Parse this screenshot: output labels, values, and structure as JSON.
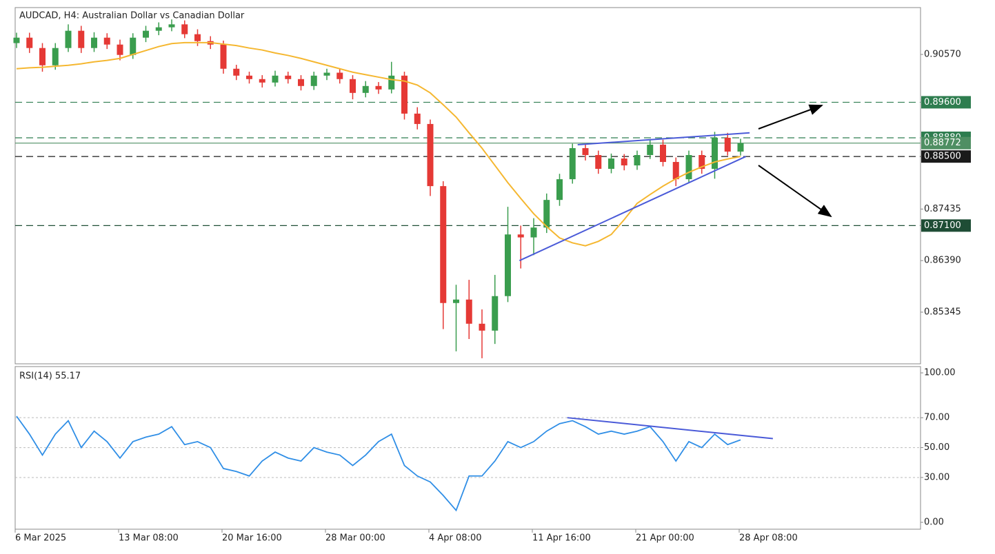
{
  "chart_data": {
    "type": "candlestick",
    "title": "AUDCAD, H4:  Australian Dollar vs Canadian Dollar",
    "categories": [
      "6 Mar 2025",
      null,
      null,
      null,
      null,
      null,
      null,
      null,
      "13 Mar 08:00",
      null,
      null,
      null,
      null,
      null,
      null,
      null,
      "20 Mar 16:00",
      null,
      null,
      null,
      null,
      null,
      null,
      null,
      "28 Mar 00:00",
      null,
      null,
      null,
      null,
      null,
      null,
      null,
      "4 Apr 08:00",
      null,
      null,
      null,
      null,
      null,
      null,
      null,
      "11 Apr 16:00",
      null,
      null,
      null,
      null,
      null,
      null,
      null,
      "21 Apr 00:00",
      null,
      null,
      null,
      null,
      null,
      null,
      null,
      "28 Apr 08:00"
    ],
    "open": [
      0.908,
      0.9091,
      0.907,
      0.9035,
      0.907,
      0.9105,
      0.907,
      0.9091,
      0.9077,
      0.9056,
      0.9091,
      0.9105,
      0.9112,
      0.9118,
      0.9098,
      0.9084,
      0.9077,
      0.9028,
      0.9014,
      0.9007,
      0.9,
      0.9014,
      0.9007,
      0.8993,
      0.9014,
      0.902,
      0.9007,
      0.8979,
      0.8993,
      0.8986,
      0.9014,
      0.8937,
      0.8916,
      0.879,
      0.8553,
      0.856,
      0.8511,
      0.8497,
      0.8567,
      0.8692,
      0.8686,
      0.8706,
      0.8762,
      0.8804,
      0.8867,
      0.8853,
      0.8825,
      0.8846,
      0.8832,
      0.8853,
      0.8874,
      0.8839,
      0.8804,
      0.8853,
      0.8825,
      0.8888,
      0.886
    ],
    "high": [
      0.9101,
      0.9101,
      0.908,
      0.908,
      0.9118,
      0.9115,
      0.9102,
      0.91,
      0.9087,
      0.91,
      0.9115,
      0.9122,
      0.9128,
      0.9126,
      0.9108,
      0.9094,
      0.9085,
      0.9036,
      0.9022,
      0.9015,
      0.9024,
      0.9022,
      0.9015,
      0.9022,
      0.9028,
      0.9028,
      0.9015,
      0.9003,
      0.9001,
      0.9042,
      0.9022,
      0.895,
      0.8925,
      0.88,
      0.859,
      0.86,
      0.854,
      0.861,
      0.8748,
      0.871,
      0.8725,
      0.8775,
      0.8815,
      0.8876,
      0.8875,
      0.8862,
      0.8856,
      0.8855,
      0.8862,
      0.8884,
      0.8884,
      0.8848,
      0.8862,
      0.8862,
      0.89,
      0.8898,
      0.8886
    ],
    "low": [
      0.907,
      0.906,
      0.9022,
      0.9026,
      0.9062,
      0.906,
      0.9062,
      0.9068,
      0.9045,
      0.9048,
      0.9082,
      0.9096,
      0.9104,
      0.909,
      0.9074,
      0.9068,
      0.9018,
      0.9005,
      0.8998,
      0.899,
      0.8992,
      0.8998,
      0.8984,
      0.8985,
      0.9005,
      0.8998,
      0.8966,
      0.897,
      0.8977,
      0.8978,
      0.8925,
      0.8905,
      0.877,
      0.85,
      0.8455,
      0.848,
      0.8441,
      0.847,
      0.8555,
      0.8623,
      0.865,
      0.8695,
      0.875,
      0.8795,
      0.8842,
      0.8815,
      0.8816,
      0.8822,
      0.8823,
      0.8845,
      0.883,
      0.879,
      0.8796,
      0.8815,
      0.8805,
      0.8852,
      0.8852
    ],
    "close": [
      0.9091,
      0.907,
      0.9035,
      0.907,
      0.9105,
      0.907,
      0.9091,
      0.9077,
      0.9056,
      0.9091,
      0.9105,
      0.9112,
      0.9118,
      0.9098,
      0.9084,
      0.9077,
      0.9028,
      0.9014,
      0.9007,
      0.9,
      0.9014,
      0.9007,
      0.8993,
      0.9014,
      0.902,
      0.9007,
      0.8979,
      0.8993,
      0.8986,
      0.9014,
      0.8937,
      0.8916,
      0.879,
      0.8553,
      0.856,
      0.8511,
      0.8497,
      0.8567,
      0.8692,
      0.8686,
      0.8706,
      0.8762,
      0.8804,
      0.8867,
      0.8853,
      0.8825,
      0.8846,
      0.8832,
      0.8853,
      0.8874,
      0.8839,
      0.8804,
      0.8853,
      0.8825,
      0.8888,
      0.886,
      0.8877
    ],
    "up_color": "#3a9d4e",
    "down_color": "#e53935",
    "ylim": [
      0.84297,
      0.9152
    ],
    "yticks": [
      {
        "value": 0.9057,
        "label": "0.90570"
      },
      {
        "value": 0.87435,
        "label": "0.87435"
      },
      {
        "value": 0.8639,
        "label": "0.86390"
      },
      {
        "value": 0.85345,
        "label": "0.85345"
      }
    ],
    "ma": {
      "color": "#f5b730",
      "values": [
        0.9028,
        0.903,
        0.9031,
        0.9033,
        0.9035,
        0.9038,
        0.9042,
        0.9045,
        0.9049,
        0.9057,
        0.9065,
        0.9073,
        0.9079,
        0.9081,
        0.9081,
        0.9081,
        0.9078,
        0.9075,
        0.907,
        0.9066,
        0.906,
        0.9055,
        0.9049,
        0.9042,
        0.9035,
        0.9028,
        0.9021,
        0.9016,
        0.9011,
        0.9006,
        0.9003,
        0.8995,
        0.8979,
        0.8955,
        0.893,
        0.8898,
        0.8867,
        0.8832,
        0.8797,
        0.8765,
        0.8734,
        0.8708,
        0.8685,
        0.8675,
        0.8669,
        0.8678,
        0.8692,
        0.8722,
        0.8755,
        0.8773,
        0.879,
        0.8805,
        0.8818,
        0.8829,
        0.8839,
        0.8845,
        0.885
      ]
    },
    "levels": [
      {
        "value": 0.896,
        "label": "0.89600",
        "color": "#2e7d4f",
        "style": "dashed"
      },
      {
        "value": 0.8888,
        "label": "0.88880",
        "color": "#2e7d4f",
        "style": "dashed"
      },
      {
        "value": 0.88772,
        "label": "0.88772",
        "color": "#4f8f63",
        "style": "solid"
      },
      {
        "value": 0.885,
        "label": "0.88500",
        "color": "#1a1a1a",
        "style": "dashed"
      },
      {
        "value": 0.871,
        "label": "0.87100",
        "color": "#1e4d35",
        "style": "dashed"
      }
    ],
    "trendline_color": "#4a5ad8",
    "trendlines": [
      {
        "x": [
          43.4,
          56.7
        ],
        "y": [
          0.8874,
          0.8898
        ]
      },
      {
        "x": [
          38.9,
          56.4
        ],
        "y": [
          0.8639,
          0.885
        ]
      }
    ],
    "rsi": {
      "type": "line",
      "label": "RSI(14) 55.17",
      "color": "#2f8ee6",
      "values": [
        71,
        59,
        45,
        59,
        68,
        50,
        61,
        54,
        43,
        54,
        57,
        59,
        64,
        52,
        54,
        50,
        36,
        34,
        31,
        41,
        47,
        43,
        41,
        50,
        47,
        45,
        38,
        45,
        54,
        59,
        38,
        31,
        27,
        18,
        8,
        31,
        31,
        41,
        54,
        50,
        54,
        61,
        66,
        68,
        64,
        59,
        61,
        59,
        61,
        64,
        54,
        41,
        54,
        50,
        59,
        52,
        55.17
      ],
      "ylim": [
        -4.6,
        104.2
      ],
      "yticks": [
        {
          "value": 100,
          "label": "100.00"
        },
        {
          "value": 70,
          "label": "70.00"
        },
        {
          "value": 50,
          "label": "50.00"
        },
        {
          "value": 30,
          "label": "30.00"
        },
        {
          "value": 0,
          "label": "0.00"
        }
      ],
      "trendline": {
        "x": [
          42.6,
          58.5
        ],
        "y": [
          70,
          56
        ]
      }
    }
  }
}
